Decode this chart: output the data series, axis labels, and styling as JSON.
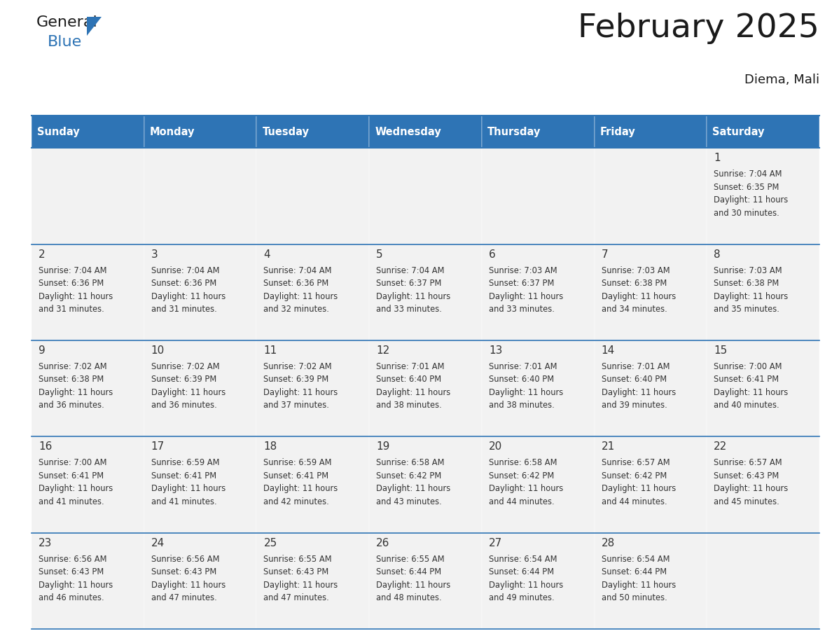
{
  "title": "February 2025",
  "subtitle": "Diema, Mali",
  "days_of_week": [
    "Sunday",
    "Monday",
    "Tuesday",
    "Wednesday",
    "Thursday",
    "Friday",
    "Saturday"
  ],
  "header_bg": "#2E74B5",
  "header_text_color": "#FFFFFF",
  "cell_bg": "#F2F2F2",
  "border_color": "#2E74B5",
  "day_num_color": "#333333",
  "text_color": "#333333",
  "title_color": "#1a1a1a",
  "calendar_data": [
    [
      null,
      null,
      null,
      null,
      null,
      null,
      {
        "day": 1,
        "sunrise": "7:04 AM",
        "sunset": "6:35 PM",
        "daylight": "11 hours and 30 minutes."
      }
    ],
    [
      {
        "day": 2,
        "sunrise": "7:04 AM",
        "sunset": "6:36 PM",
        "daylight": "11 hours and 31 minutes."
      },
      {
        "day": 3,
        "sunrise": "7:04 AM",
        "sunset": "6:36 PM",
        "daylight": "11 hours and 31 minutes."
      },
      {
        "day": 4,
        "sunrise": "7:04 AM",
        "sunset": "6:36 PM",
        "daylight": "11 hours and 32 minutes."
      },
      {
        "day": 5,
        "sunrise": "7:04 AM",
        "sunset": "6:37 PM",
        "daylight": "11 hours and 33 minutes."
      },
      {
        "day": 6,
        "sunrise": "7:03 AM",
        "sunset": "6:37 PM",
        "daylight": "11 hours and 33 minutes."
      },
      {
        "day": 7,
        "sunrise": "7:03 AM",
        "sunset": "6:38 PM",
        "daylight": "11 hours and 34 minutes."
      },
      {
        "day": 8,
        "sunrise": "7:03 AM",
        "sunset": "6:38 PM",
        "daylight": "11 hours and 35 minutes."
      }
    ],
    [
      {
        "day": 9,
        "sunrise": "7:02 AM",
        "sunset": "6:38 PM",
        "daylight": "11 hours and 36 minutes."
      },
      {
        "day": 10,
        "sunrise": "7:02 AM",
        "sunset": "6:39 PM",
        "daylight": "11 hours and 36 minutes."
      },
      {
        "day": 11,
        "sunrise": "7:02 AM",
        "sunset": "6:39 PM",
        "daylight": "11 hours and 37 minutes."
      },
      {
        "day": 12,
        "sunrise": "7:01 AM",
        "sunset": "6:40 PM",
        "daylight": "11 hours and 38 minutes."
      },
      {
        "day": 13,
        "sunrise": "7:01 AM",
        "sunset": "6:40 PM",
        "daylight": "11 hours and 38 minutes."
      },
      {
        "day": 14,
        "sunrise": "7:01 AM",
        "sunset": "6:40 PM",
        "daylight": "11 hours and 39 minutes."
      },
      {
        "day": 15,
        "sunrise": "7:00 AM",
        "sunset": "6:41 PM",
        "daylight": "11 hours and 40 minutes."
      }
    ],
    [
      {
        "day": 16,
        "sunrise": "7:00 AM",
        "sunset": "6:41 PM",
        "daylight": "11 hours and 41 minutes."
      },
      {
        "day": 17,
        "sunrise": "6:59 AM",
        "sunset": "6:41 PM",
        "daylight": "11 hours and 41 minutes."
      },
      {
        "day": 18,
        "sunrise": "6:59 AM",
        "sunset": "6:41 PM",
        "daylight": "11 hours and 42 minutes."
      },
      {
        "day": 19,
        "sunrise": "6:58 AM",
        "sunset": "6:42 PM",
        "daylight": "11 hours and 43 minutes."
      },
      {
        "day": 20,
        "sunrise": "6:58 AM",
        "sunset": "6:42 PM",
        "daylight": "11 hours and 44 minutes."
      },
      {
        "day": 21,
        "sunrise": "6:57 AM",
        "sunset": "6:42 PM",
        "daylight": "11 hours and 44 minutes."
      },
      {
        "day": 22,
        "sunrise": "6:57 AM",
        "sunset": "6:43 PM",
        "daylight": "11 hours and 45 minutes."
      }
    ],
    [
      {
        "day": 23,
        "sunrise": "6:56 AM",
        "sunset": "6:43 PM",
        "daylight": "11 hours and 46 minutes."
      },
      {
        "day": 24,
        "sunrise": "6:56 AM",
        "sunset": "6:43 PM",
        "daylight": "11 hours and 47 minutes."
      },
      {
        "day": 25,
        "sunrise": "6:55 AM",
        "sunset": "6:43 PM",
        "daylight": "11 hours and 47 minutes."
      },
      {
        "day": 26,
        "sunrise": "6:55 AM",
        "sunset": "6:44 PM",
        "daylight": "11 hours and 48 minutes."
      },
      {
        "day": 27,
        "sunrise": "6:54 AM",
        "sunset": "6:44 PM",
        "daylight": "11 hours and 49 minutes."
      },
      {
        "day": 28,
        "sunrise": "6:54 AM",
        "sunset": "6:44 PM",
        "daylight": "11 hours and 50 minutes."
      },
      null
    ]
  ]
}
